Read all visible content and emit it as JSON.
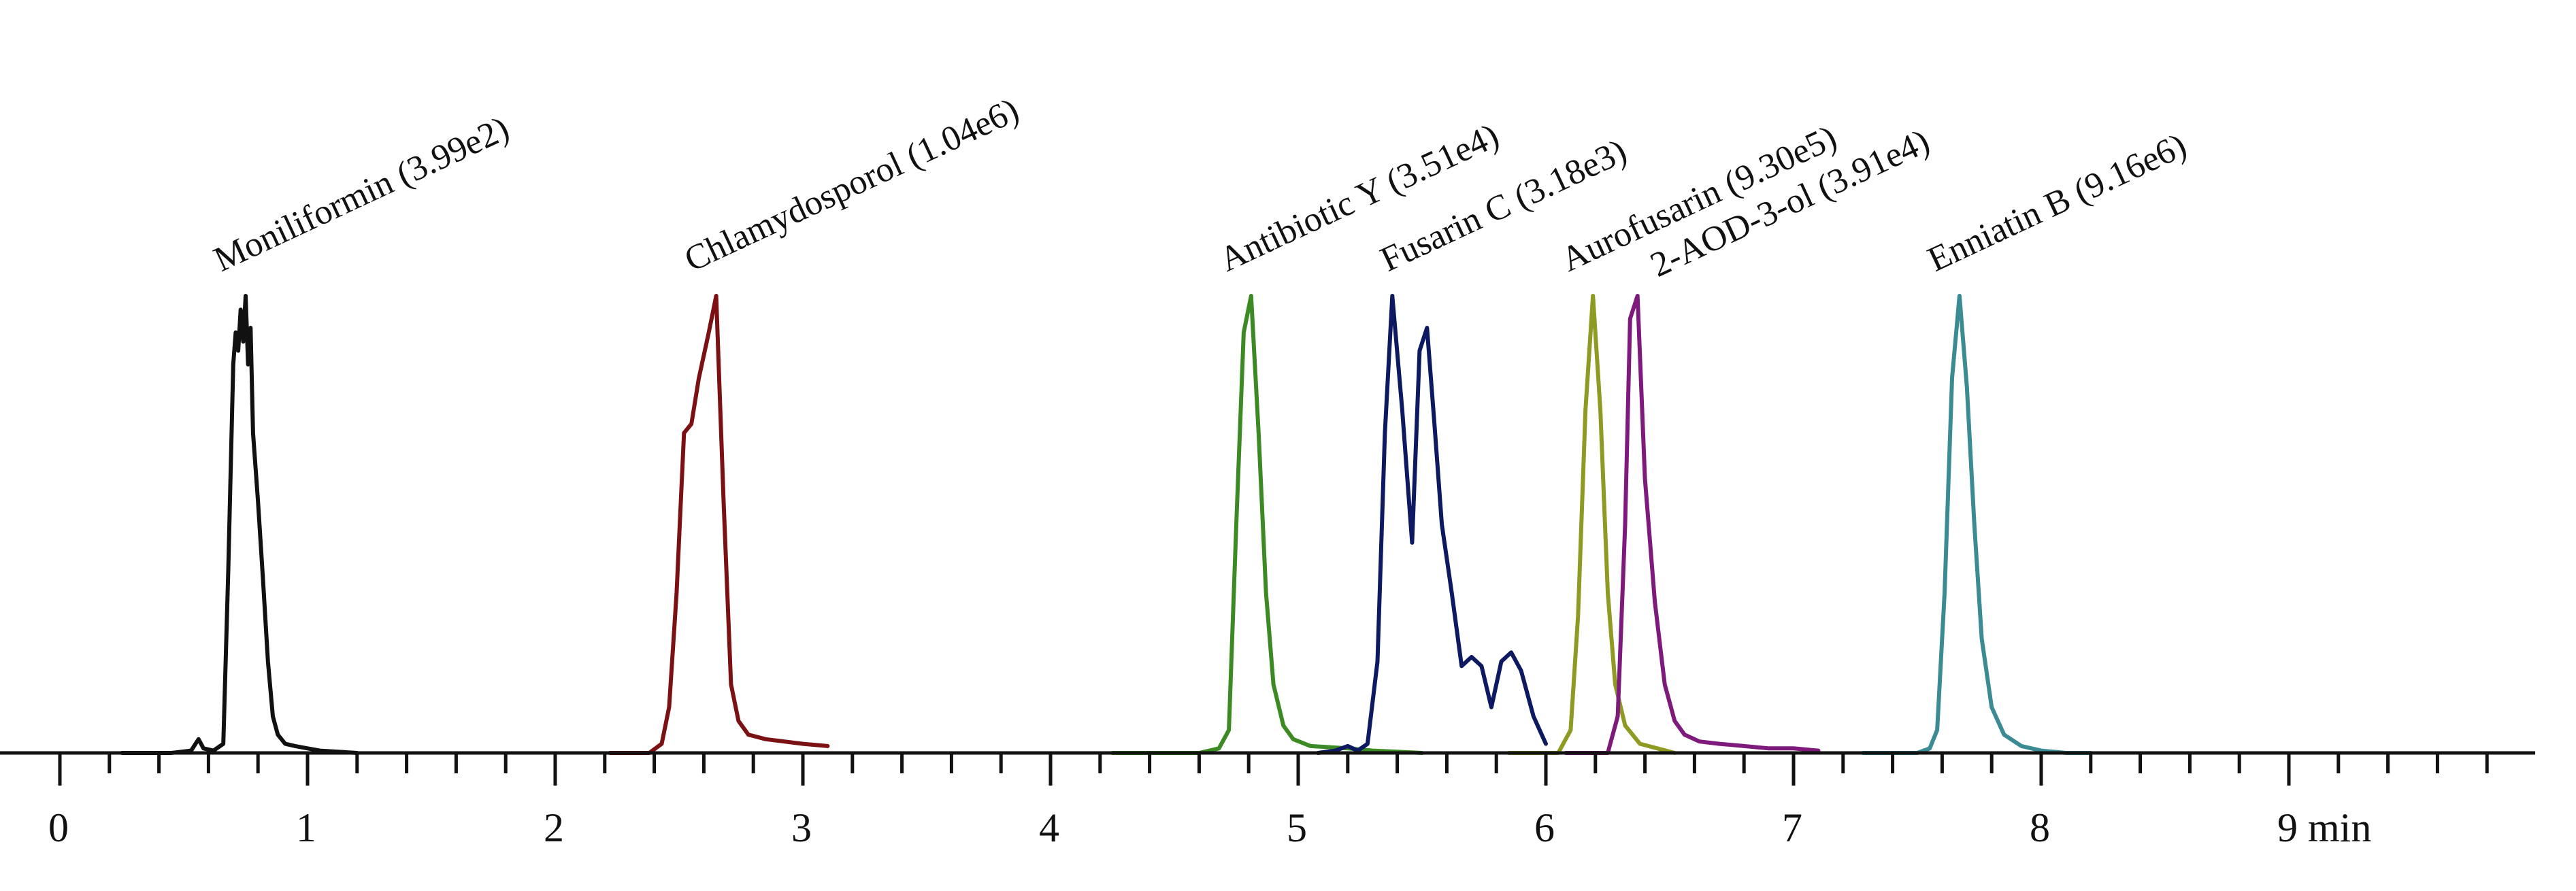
{
  "chart_data": {
    "type": "line",
    "title": "",
    "xlabel": "",
    "ylabel": "",
    "x_unit": "min",
    "xlim": [
      -0.2,
      9.8
    ],
    "ylim": [
      0,
      1
    ],
    "x_ticks": [
      {
        "value": 0,
        "label": "0"
      },
      {
        "value": 1,
        "label": "1"
      },
      {
        "value": 2,
        "label": "2"
      },
      {
        "value": 3,
        "label": "3"
      },
      {
        "value": 4,
        "label": "4"
      },
      {
        "value": 5,
        "label": "5"
      },
      {
        "value": 6,
        "label": "6"
      },
      {
        "value": 7,
        "label": "7"
      },
      {
        "value": 8,
        "label": "8"
      },
      {
        "value": 9,
        "label": "9 min"
      }
    ],
    "minor_tick_step": 0.2,
    "grid": false,
    "legend": "none",
    "series": [
      {
        "name": "Moniliformin (3.99e2)",
        "color": "#111111",
        "x": [
          0.25,
          0.45,
          0.53,
          0.56,
          0.58,
          0.62,
          0.66,
          0.68,
          0.7,
          0.71,
          0.72,
          0.73,
          0.74,
          0.75,
          0.76,
          0.77,
          0.78,
          0.8,
          0.82,
          0.84,
          0.86,
          0.88,
          0.91,
          0.95,
          1.0,
          1.05,
          1.2
        ],
        "y": [
          0,
          0,
          0.005,
          0.03,
          0.01,
          0.005,
          0.02,
          0.4,
          0.85,
          0.92,
          0.88,
          0.97,
          0.9,
          1.0,
          0.85,
          0.93,
          0.7,
          0.55,
          0.38,
          0.2,
          0.08,
          0.04,
          0.02,
          0.015,
          0.01,
          0.005,
          0
        ]
      },
      {
        "name": "Chlamydosporol (1.04e6)",
        "color": "#7b1113",
        "x": [
          2.22,
          2.38,
          2.43,
          2.46,
          2.49,
          2.52,
          2.55,
          2.58,
          2.62,
          2.65,
          2.68,
          2.71,
          2.74,
          2.78,
          2.85,
          3.0,
          3.1
        ],
        "y": [
          0,
          0,
          0.02,
          0.1,
          0.35,
          0.7,
          0.72,
          0.82,
          0.92,
          1.0,
          0.55,
          0.15,
          0.07,
          0.04,
          0.03,
          0.02,
          0.015
        ]
      },
      {
        "name": "Antibiotic Y (3.51e4)",
        "color": "#3c8a24",
        "x": [
          4.25,
          4.6,
          4.68,
          4.72,
          4.75,
          4.78,
          4.81,
          4.84,
          4.87,
          4.9,
          4.94,
          4.98,
          5.05,
          5.2,
          5.3,
          5.5
        ],
        "y": [
          0,
          0,
          0.01,
          0.05,
          0.5,
          0.92,
          1.0,
          0.7,
          0.35,
          0.15,
          0.06,
          0.03,
          0.015,
          0.01,
          0.005,
          0
        ]
      },
      {
        "name": "Fusarin C (3.18e3)",
        "color": "#0d1a62",
        "x": [
          5.08,
          5.15,
          5.2,
          5.24,
          5.28,
          5.32,
          5.35,
          5.38,
          5.42,
          5.46,
          5.49,
          5.52,
          5.55,
          5.58,
          5.62,
          5.66,
          5.7,
          5.74,
          5.78,
          5.82,
          5.86,
          5.9,
          5.95,
          6.0
        ],
        "y": [
          0,
          0.005,
          0.015,
          0.005,
          0.02,
          0.2,
          0.7,
          1.0,
          0.75,
          0.46,
          0.88,
          0.93,
          0.72,
          0.5,
          0.35,
          0.19,
          0.21,
          0.19,
          0.1,
          0.2,
          0.22,
          0.18,
          0.08,
          0.02
        ]
      },
      {
        "name": "Aurofusarin (9.30e5)",
        "color": "#8f9a22",
        "x": [
          5.85,
          6.05,
          6.1,
          6.13,
          6.16,
          6.19,
          6.22,
          6.25,
          6.28,
          6.32,
          6.38,
          6.45,
          6.52
        ],
        "y": [
          0,
          0,
          0.05,
          0.3,
          0.75,
          1.0,
          0.75,
          0.35,
          0.15,
          0.06,
          0.02,
          0.01,
          0
        ]
      },
      {
        "name": "2-AOD-3-ol (3.91e4)",
        "color": "#7e1a7c",
        "x": [
          6.08,
          6.25,
          6.29,
          6.32,
          6.34,
          6.37,
          6.4,
          6.44,
          6.48,
          6.52,
          6.56,
          6.62,
          6.7,
          6.8,
          6.9,
          7.0,
          7.1
        ],
        "y": [
          0,
          0,
          0.08,
          0.5,
          0.95,
          1.0,
          0.6,
          0.33,
          0.15,
          0.07,
          0.04,
          0.025,
          0.02,
          0.015,
          0.01,
          0.01,
          0.005
        ]
      },
      {
        "name": "Enniatin B (9.16e6)",
        "color": "#3a8b94",
        "x": [
          7.28,
          7.5,
          7.55,
          7.58,
          7.61,
          7.64,
          7.67,
          7.7,
          7.73,
          7.76,
          7.8,
          7.85,
          7.92,
          8.0,
          8.1,
          8.2
        ],
        "y": [
          0,
          0,
          0.01,
          0.05,
          0.35,
          0.82,
          1.0,
          0.8,
          0.5,
          0.25,
          0.1,
          0.04,
          0.015,
          0.005,
          0,
          0
        ]
      }
    ],
    "peak_labels": [
      {
        "text": "Moniliformin (3.99e2)",
        "x": 0.75
      },
      {
        "text": "Chlamydosporol (1.04e6)",
        "x": 2.65
      },
      {
        "text": "Antibiotic Y (3.51e4)",
        "x": 4.81
      },
      {
        "text": "Fusarin C (3.18e3)",
        "x": 5.46
      },
      {
        "text": "Aurofusarin (9.30e5)",
        "x": 6.19
      },
      {
        "text": "2-AOD-3-ol (3.91e4)",
        "x": 6.55
      },
      {
        "text": "Enniatin B (9.16e6)",
        "x": 7.67
      }
    ]
  }
}
